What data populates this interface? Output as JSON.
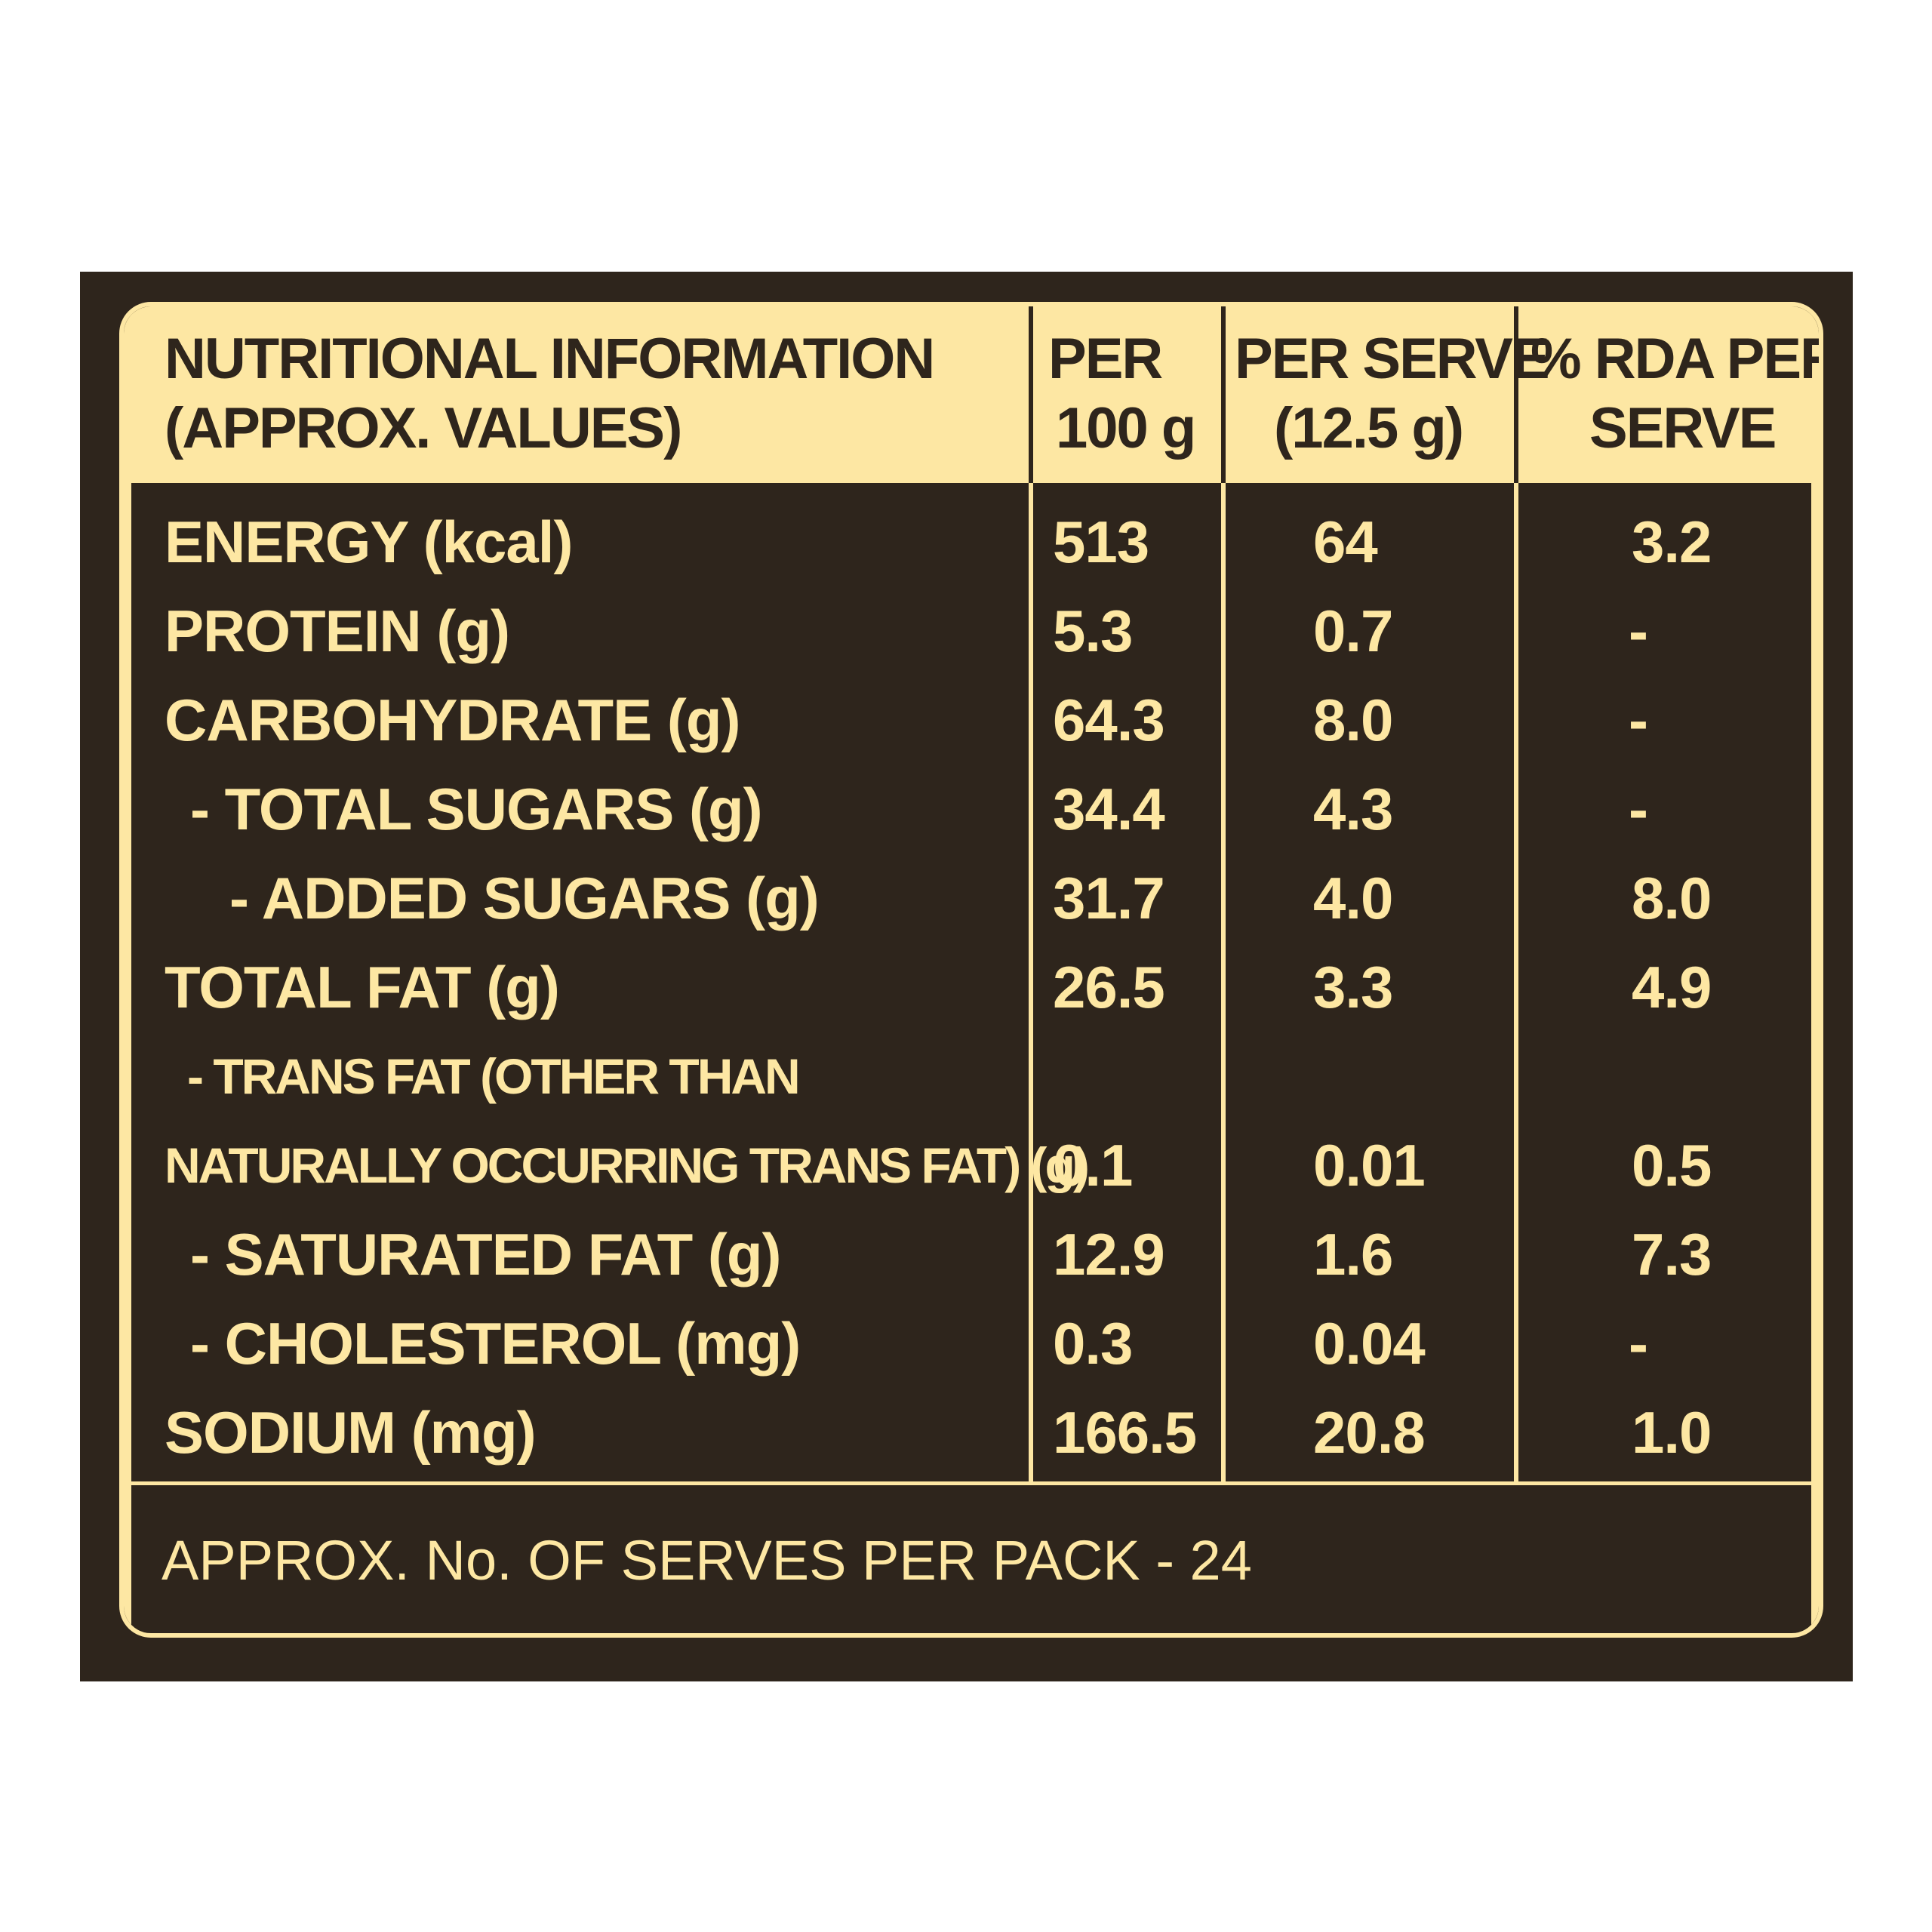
{
  "colors": {
    "background": "#2e251c",
    "accent": "#fde7a3",
    "page": "#ffffff"
  },
  "header": {
    "col1_line1": "NUTRITIONAL INFORMATION",
    "col1_line2": "(APPROX. VALUES)",
    "col2_line1": "PER",
    "col2_line2": "100 g",
    "col3_line1": "PER SERVE",
    "col3_line2": "(12.5 g)",
    "col4_line1": "% RDA PER",
    "col4_line2": "SERVE"
  },
  "rows": [
    {
      "label": "ENERGY (kcal)",
      "per100": "513",
      "perServe": "64",
      "rda": "3.2"
    },
    {
      "label": "PROTEIN (g)",
      "per100": "5.3",
      "perServe": "0.7",
      "rda": "-"
    },
    {
      "label": "CARBOHYDRATE (g)",
      "per100": "64.3",
      "perServe": "8.0",
      "rda": "-"
    },
    {
      "label": "- TOTAL SUGARS (g)",
      "per100": "34.4",
      "perServe": "4.3",
      "rda": "-"
    },
    {
      "label": "- ADDED SUGARS (g)",
      "per100": "31.7",
      "perServe": "4.0",
      "rda": "8.0"
    },
    {
      "label": "TOTAL FAT (g)",
      "per100": "26.5",
      "perServe": "3.3",
      "rda": "4.9"
    },
    {
      "label": "- TRANS FAT (OTHER THAN",
      "per100": "",
      "perServe": "",
      "rda": ""
    },
    {
      "label": "NATURALLY OCCURRING TRANS FAT) (g)",
      "per100": "0.1",
      "perServe": "0.01",
      "rda": "0.5"
    },
    {
      "label": "- SATURATED FAT (g)",
      "per100": "12.9",
      "perServe": "1.6",
      "rda": "7.3"
    },
    {
      "label": "- CHOLESTEROL (mg)",
      "per100": "0.3",
      "perServe": "0.04",
      "rda": "-"
    },
    {
      "label": "SODIUM (mg)",
      "per100": "166.5",
      "perServe": "20.8",
      "rda": "1.0"
    }
  ],
  "footer": {
    "text": "APPROX. No. OF SERVES PER PACK - 24"
  }
}
